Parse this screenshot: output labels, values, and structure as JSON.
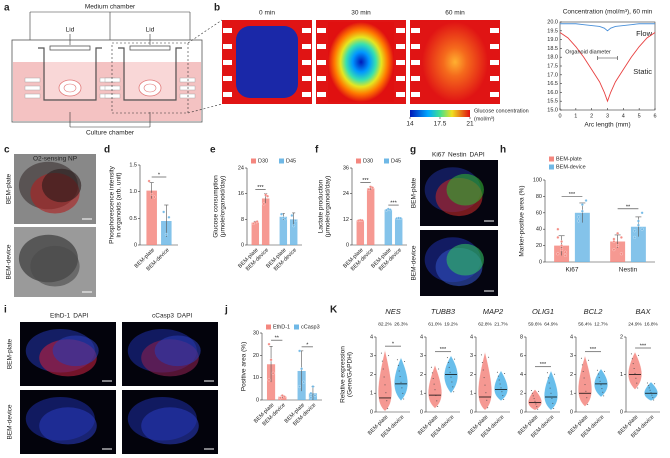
{
  "figure": {
    "a": {
      "panel": "a",
      "top": "Medium chamber",
      "lids": [
        "Lid",
        "Lid"
      ],
      "bottom": "Culture chamber"
    },
    "b": {
      "panel": "b",
      "times": [
        "0 min",
        "30 min",
        "60 min"
      ],
      "colorbar": {
        "title": "Glucose concentration",
        "unit": "(mol/m³)",
        "lim": [
          14,
          21
        ],
        "ticks": [
          14,
          17.5,
          21
        ]
      }
    },
    "c": {
      "panel": "c",
      "title": "O2-sensing NP",
      "rows": [
        "BEM-plate",
        "BEM-device"
      ]
    },
    "g": {
      "panel": "g",
      "stains": [
        {
          "text": "Ki67",
          "color": "#3cd23c"
        },
        {
          "text": "Nestin",
          "color": "#ff3030"
        },
        {
          "text": "DAPI",
          "color": "#4a7cff"
        }
      ],
      "rows": [
        "BEM-plate",
        "BEM-device"
      ]
    },
    "i": {
      "panel": "i",
      "columns": [
        [
          {
            "text": "EthD-1",
            "color": "#ff3030"
          },
          {
            "text": "DAPI",
            "color": "#4a7cff"
          }
        ],
        [
          {
            "text": "cCasp3",
            "color": "#ff3030"
          },
          {
            "text": "DAPI",
            "color": "#4a7cff"
          }
        ]
      ],
      "rows": [
        "BEM-plate",
        "BEM-device"
      ]
    }
  },
  "chart_data": [
    {
      "type": "line",
      "title": "Concentration (mol/m³), 60 min",
      "xlabel": "Arc length (mm)",
      "annotation": "Organoid diameter",
      "x": [
        0,
        0.5,
        1,
        1.5,
        2,
        2.5,
        2.8,
        3,
        3.2,
        3.5,
        4,
        4.5,
        5,
        5.5,
        6
      ],
      "series": [
        {
          "name": "Flow",
          "color": "#4a90d9",
          "values": [
            19.9,
            19.9,
            19.9,
            19.85,
            19.8,
            19.75,
            19.65,
            19.5,
            19.65,
            19.75,
            19.8,
            19.85,
            19.9,
            19.9,
            19.9
          ]
        },
        {
          "name": "Static",
          "color": "#e84040",
          "values": [
            19.4,
            19.1,
            18.6,
            18.0,
            17.3,
            16.6,
            16.0,
            15.5,
            16.0,
            16.6,
            17.3,
            18.0,
            18.6,
            19.1,
            19.4
          ]
        }
      ],
      "xlim": [
        0,
        6
      ],
      "xticks": [
        0,
        1,
        2,
        3,
        4,
        5,
        6
      ],
      "ylim": [
        15,
        20
      ],
      "yticks": [
        {
          "value": 15,
          "label": "15.0"
        },
        15.5,
        {
          "value": 16,
          "label": "16.0"
        },
        16.5,
        {
          "value": 17,
          "label": "17.0"
        },
        17.5,
        {
          "value": 18,
          "label": "18.0"
        },
        18.5,
        {
          "value": 19,
          "label": "19.0"
        },
        19.5,
        {
          "value": 20,
          "label": "20.0"
        }
      ]
    },
    {
      "type": "bar",
      "panel": "d",
      "ylabel": [
        "Phosphorescence intensity",
        "in organoids (arb. unit)"
      ],
      "categories": [
        "BEM-plate",
        "BEM-device"
      ],
      "values": [
        1.02,
        0.45
      ],
      "errors": [
        0.15,
        0.3
      ],
      "points": [
        [
          1.2,
          0.95,
          0.9
        ],
        [
          0.62,
          0.2,
          0.52
        ]
      ],
      "colors": [
        "#f4877f",
        "#6fb8e6"
      ],
      "ylim": [
        0,
        1.5
      ],
      "yticks": [
        0,
        0.5,
        {
          "value": 1,
          "label": "1.0"
        },
        1.5
      ],
      "significance": [
        "*"
      ]
    },
    {
      "type": "bar",
      "panel": "e",
      "ylabel": [
        "Glucose consumption",
        "(μmole/organoid/day)"
      ],
      "categories": [
        "BEM-plate",
        "BEM-device"
      ],
      "series": [
        {
          "name": "D30",
          "color": "#f4877f",
          "values": [
            7.0,
            14.5
          ],
          "errors": [
            0.4,
            1.5
          ],
          "points": [
            [
              6.7,
              7.0,
              7.3
            ],
            [
              12.8,
              15.6,
              15.2
            ]
          ]
        },
        {
          "name": "D45",
          "color": "#6fb8e6",
          "values": [
            8.8,
            8.0
          ],
          "errors": [
            1.0,
            2.0
          ],
          "points": [
            [
              9.6,
              8.5,
              8.2
            ],
            [
              9.2,
              6.0,
              7.6
            ]
          ]
        }
      ],
      "ylim": [
        0,
        24
      ],
      "yticks": [
        0,
        8,
        16,
        24
      ],
      "significance": [
        "***",
        null
      ]
    },
    {
      "type": "bar",
      "panel": "f",
      "ylabel": [
        "Lactate production",
        "(μmole/organoid/day)"
      ],
      "categories": [
        "BEM-plate",
        "BEM-device"
      ],
      "series": [
        {
          "name": "D30",
          "color": "#f4877f",
          "values": [
            11.5,
            26.5
          ],
          "errors": [
            0.2,
            0.8
          ],
          "points": [
            [
              11.4,
              11.6,
              11.5
            ],
            [
              26.0,
              27.2,
              26.8
            ]
          ]
        },
        {
          "name": "D45",
          "color": "#6fb8e6",
          "values": [
            16.5,
            12.5
          ],
          "errors": [
            0.3,
            0.2
          ],
          "points": [
            [
              16.3,
              16.8,
              16.5
            ],
            [
              12.4,
              12.6,
              12.5
            ]
          ]
        }
      ],
      "ylim": [
        0,
        36
      ],
      "yticks": [
        0,
        12,
        24,
        36
      ],
      "significance": [
        "***",
        "***"
      ]
    },
    {
      "type": "bar",
      "panel": "h",
      "ylabel": [
        "Marker-positive area (%)"
      ],
      "categories": [
        "Ki67",
        "Nestin"
      ],
      "series": [
        {
          "name": "BEM-plate",
          "color": "#f4877f",
          "values": [
            20,
            25
          ],
          "errors": [
            12,
            8
          ],
          "points": [
            [
              10,
              15,
              8,
              30,
              20,
              12,
              40,
              25
            ],
            [
              15,
              20,
              30,
              28,
              35,
              10,
              25
            ]
          ]
        },
        {
          "name": "BEM-device",
          "color": "#6fb8e6",
          "values": [
            60,
            43
          ],
          "errors": [
            12,
            12
          ],
          "points": [
            [
              55,
              70,
              75,
              50,
              62
            ],
            [
              30,
              45,
              60,
              38,
              50,
              40
            ]
          ]
        }
      ],
      "ylim": [
        0,
        100
      ],
      "yticks": [
        0,
        20,
        40,
        60,
        80,
        100
      ],
      "significance": [
        "***",
        "**"
      ]
    },
    {
      "type": "bar",
      "panel": "j",
      "ylabel": [
        "Positive area (%)"
      ],
      "categories": [
        "BEM-plate",
        "BEM-device"
      ],
      "series": [
        {
          "name": "EthD-1",
          "color": "#f4877f",
          "values": [
            16,
            1.5
          ],
          "errors": [
            8,
            0.5
          ],
          "points": [
            [
              25,
              18,
              12,
              9
            ],
            [
              1,
              2,
              1.5,
              1
            ]
          ]
        },
        {
          "name": "cCasp3",
          "color": "#6fb8e6",
          "values": [
            13,
            3
          ],
          "errors": [
            9,
            3
          ],
          "points": [
            [
              22,
              14,
              8,
              6
            ],
            [
              1,
              6,
              2,
              3
            ]
          ]
        }
      ],
      "ylim": [
        0,
        30
      ],
      "yticks": [
        0,
        10,
        20,
        30
      ],
      "significance": [
        "**",
        "*"
      ]
    },
    {
      "type": "violin",
      "panel": "K",
      "ylabel": [
        "Relative expression",
        "(Gene/GAPDH)"
      ],
      "categories": [
        "BEM-plate",
        "BEM-device"
      ],
      "colors": [
        "#f4877f",
        "#4fb3e8"
      ],
      "genes": [
        {
          "name": "NES",
          "percents": [
            "82.2%",
            "26.3%"
          ],
          "ylim": [
            0,
            4
          ],
          "yticks": [
            0,
            1,
            2,
            3,
            4
          ],
          "medians": [
            0.75,
            1.5
          ],
          "ranges": [
            [
              0.05,
              3.3
            ],
            [
              0.6,
              2.9
            ]
          ],
          "significance": "*"
        },
        {
          "name": "TUBB3",
          "percents": [
            "61.0%",
            "19.2%"
          ],
          "ylim": [
            0,
            4
          ],
          "yticks": [
            0,
            1,
            2,
            3,
            4
          ],
          "medians": [
            0.9,
            2.0
          ],
          "ranges": [
            [
              0.2,
              2.5
            ],
            [
              1.0,
              3.0
            ]
          ],
          "significance": "***"
        },
        {
          "name": "MAP2",
          "percents": [
            "62.8%",
            "21.7%"
          ],
          "ylim": [
            0,
            4
          ],
          "yticks": [
            0,
            1,
            2,
            3,
            4
          ],
          "medians": [
            0.8,
            1.2
          ],
          "ranges": [
            [
              0.1,
              3.2
            ],
            [
              0.6,
              2.2
            ]
          ],
          "significance": null
        },
        {
          "name": "OLIG1",
          "percents": [
            "59.6%",
            "64.9%"
          ],
          "ylim": [
            0,
            8
          ],
          "yticks": [
            0,
            2,
            4,
            6,
            8
          ],
          "medians": [
            1.0,
            1.6
          ],
          "ranges": [
            [
              0.2,
              2.4
            ],
            [
              0.2,
              4.4
            ]
          ],
          "significance": "***"
        },
        {
          "name": "BCL2",
          "percents": [
            "56.4%",
            "12.7%"
          ],
          "ylim": [
            0,
            4
          ],
          "yticks": [
            0,
            1,
            2,
            3,
            4
          ],
          "medians": [
            1.0,
            1.5
          ],
          "ranges": [
            [
              0.3,
              3.0
            ],
            [
              0.8,
              2.3
            ]
          ],
          "significance": "***"
        },
        {
          "name": "BAX",
          "percents": [
            "24.9%",
            "16.8%"
          ],
          "ylim": [
            0,
            2
          ],
          "yticks": [
            0,
            1,
            2
          ],
          "medians": [
            1.0,
            0.5
          ],
          "ranges": [
            [
              0.6,
              1.6
            ],
            [
              0.3,
              0.8
            ]
          ],
          "significance": "***"
        }
      ]
    }
  ]
}
